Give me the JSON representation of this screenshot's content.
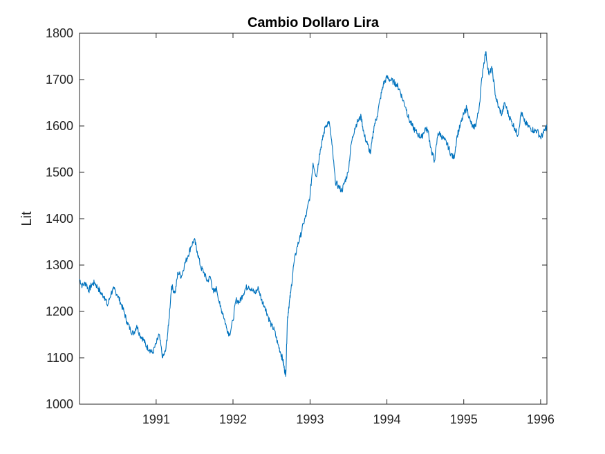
{
  "chart_data": {
    "type": "line",
    "title": "Cambio Dollaro Lira",
    "xlabel": "",
    "ylabel": "Lit",
    "xlim": [
      "1990-01-02",
      "1996-01-31"
    ],
    "ylim": [
      1000,
      1800
    ],
    "x_ticks": [
      "1991",
      "1992",
      "1993",
      "1994",
      "1995",
      "1996"
    ],
    "y_ticks": [
      "1000",
      "1100",
      "1200",
      "1300",
      "1400",
      "1500",
      "1600",
      "1700",
      "1800"
    ],
    "grid": false,
    "line_color": "#0072BD",
    "series": [
      {
        "x": [
          "1990-01-02",
          "1990-01-15",
          "1990-02-01",
          "1990-02-15",
          "1990-03-01",
          "1990-03-15",
          "1990-04-01",
          "1990-04-15",
          "1990-05-01",
          "1990-05-15",
          "1990-06-01",
          "1990-06-15",
          "1990-07-01",
          "1990-07-15",
          "1990-08-01",
          "1990-08-15",
          "1990-09-01",
          "1990-09-15",
          "1990-10-01",
          "1990-10-15",
          "1990-11-01",
          "1990-11-15",
          "1990-12-01",
          "1990-12-15",
          "1991-01-01",
          "1991-01-15",
          "1991-02-01",
          "1991-02-15",
          "1991-03-01",
          "1991-03-15",
          "1991-04-01",
          "1991-04-15",
          "1991-05-01",
          "1991-05-15",
          "1991-06-01",
          "1991-06-15",
          "1991-07-01",
          "1991-07-15",
          "1991-08-01",
          "1991-08-15",
          "1991-09-01",
          "1991-09-15",
          "1991-10-01",
          "1991-10-15",
          "1991-11-01",
          "1991-11-15",
          "1991-12-01",
          "1991-12-15",
          "1992-01-01",
          "1992-01-15",
          "1992-02-01",
          "1992-02-15",
          "1992-03-01",
          "1992-03-15",
          "1992-04-01",
          "1992-04-15",
          "1992-05-01",
          "1992-05-15",
          "1992-06-01",
          "1992-06-15",
          "1992-07-01",
          "1992-07-15",
          "1992-08-01",
          "1992-08-15",
          "1992-08-25",
          "1992-09-01",
          "1992-09-08",
          "1992-09-15",
          "1992-09-22",
          "1992-10-01",
          "1992-10-15",
          "1992-11-01",
          "1992-11-15",
          "1992-12-01",
          "1992-12-15",
          "1993-01-01",
          "1993-01-15",
          "1993-02-01",
          "1993-02-15",
          "1993-03-01",
          "1993-03-15",
          "1993-04-01",
          "1993-04-15",
          "1993-05-01",
          "1993-05-15",
          "1993-06-01",
          "1993-06-15",
          "1993-07-01",
          "1993-07-15",
          "1993-08-01",
          "1993-08-15",
          "1993-09-01",
          "1993-09-15",
          "1993-10-01",
          "1993-10-15",
          "1993-11-01",
          "1993-11-15",
          "1993-12-01",
          "1993-12-15",
          "1994-01-01",
          "1994-01-15",
          "1994-02-01",
          "1994-02-15",
          "1994-03-01",
          "1994-03-15",
          "1994-04-01",
          "1994-04-15",
          "1994-05-01",
          "1994-05-15",
          "1994-06-01",
          "1994-06-15",
          "1994-07-01",
          "1994-07-15",
          "1994-08-01",
          "1994-08-15",
          "1994-09-01",
          "1994-09-15",
          "1994-10-01",
          "1994-10-15",
          "1994-11-01",
          "1994-11-15",
          "1994-12-01",
          "1994-12-15",
          "1995-01-01",
          "1995-01-15",
          "1995-02-01",
          "1995-02-15",
          "1995-03-01",
          "1995-03-15",
          "1995-04-01",
          "1995-04-15",
          "1995-05-01",
          "1995-05-15",
          "1995-06-01",
          "1995-06-15",
          "1995-07-01",
          "1995-07-15",
          "1995-08-01",
          "1995-08-15",
          "1995-09-01",
          "1995-09-15",
          "1995-10-01",
          "1995-10-15",
          "1995-11-01",
          "1995-11-15",
          "1995-12-01",
          "1995-12-15",
          "1996-01-01",
          "1996-01-15",
          "1996-01-31"
        ],
        "y": [
          1270,
          1255,
          1262,
          1245,
          1258,
          1262,
          1250,
          1238,
          1232,
          1212,
          1240,
          1248,
          1236,
          1220,
          1200,
          1178,
          1160,
          1152,
          1170,
          1150,
          1140,
          1125,
          1118,
          1110,
          1130,
          1150,
          1100,
          1115,
          1170,
          1255,
          1240,
          1285,
          1275,
          1300,
          1320,
          1340,
          1355,
          1330,
          1295,
          1285,
          1265,
          1275,
          1240,
          1250,
          1210,
          1195,
          1165,
          1150,
          1180,
          1225,
          1220,
          1235,
          1250,
          1255,
          1245,
          1240,
          1250,
          1225,
          1210,
          1190,
          1170,
          1160,
          1130,
          1110,
          1095,
          1075,
          1065,
          1180,
          1210,
          1240,
          1300,
          1340,
          1360,
          1390,
          1410,
          1450,
          1520,
          1490,
          1540,
          1570,
          1600,
          1610,
          1560,
          1480,
          1470,
          1460,
          1480,
          1500,
          1560,
          1595,
          1610,
          1620,
          1580,
          1560,
          1540,
          1600,
          1620,
          1660,
          1690,
          1705,
          1700,
          1695,
          1690,
          1680,
          1660,
          1640,
          1615,
          1600,
          1590,
          1580,
          1575,
          1595,
          1590,
          1545,
          1525,
          1585,
          1580,
          1570,
          1560,
          1540,
          1530,
          1580,
          1600,
          1625,
          1640,
          1610,
          1595,
          1605,
          1640,
          1720,
          1760,
          1710,
          1725,
          1665,
          1640,
          1625,
          1650,
          1625,
          1610,
          1595,
          1580,
          1630,
          1610,
          1600,
          1595,
          1590,
          1590,
          1575,
          1585,
          1600
        ]
      }
    ]
  }
}
